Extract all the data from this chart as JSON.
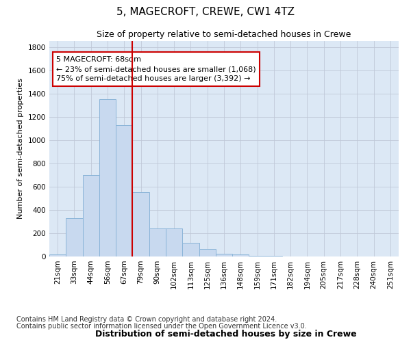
{
  "title": "5, MAGECROFT, CREWE, CW1 4TZ",
  "subtitle": "Size of property relative to semi-detached houses in Crewe",
  "xlabel": "Distribution of semi-detached houses by size in Crewe",
  "ylabel": "Number of semi-detached properties",
  "bar_color": "#c8d9ef",
  "bar_edge_color": "#8ab4d8",
  "grid_color": "#c0c8d8",
  "background_color": "#ffffff",
  "plot_bg_color": "#dce8f5",
  "annotation_box_color": "#ffffff",
  "annotation_box_edge": "#cc0000",
  "red_line_color": "#cc0000",
  "categories": [
    "21sqm",
    "33sqm",
    "44sqm",
    "56sqm",
    "67sqm",
    "79sqm",
    "90sqm",
    "102sqm",
    "113sqm",
    "125sqm",
    "136sqm",
    "148sqm",
    "159sqm",
    "171sqm",
    "182sqm",
    "194sqm",
    "205sqm",
    "217sqm",
    "228sqm",
    "240sqm",
    "251sqm"
  ],
  "values": [
    20,
    330,
    700,
    1350,
    1130,
    550,
    240,
    240,
    120,
    65,
    25,
    20,
    5,
    5,
    2,
    1,
    0,
    0,
    0,
    0,
    0
  ],
  "property_label": "5 MAGECROFT: 68sqm",
  "pct_smaller": "23",
  "num_smaller": "1,068",
  "pct_larger": "75",
  "num_larger": "3,392",
  "red_line_index": 4,
  "ylim": [
    0,
    1850
  ],
  "yticks": [
    0,
    200,
    400,
    600,
    800,
    1000,
    1200,
    1400,
    1600,
    1800
  ],
  "footer1": "Contains HM Land Registry data © Crown copyright and database right 2024.",
  "footer2": "Contains public sector information licensed under the Open Government Licence v3.0.",
  "title_fontsize": 11,
  "subtitle_fontsize": 9,
  "xlabel_fontsize": 9,
  "ylabel_fontsize": 8,
  "tick_fontsize": 7.5,
  "annotation_fontsize": 8,
  "footer_fontsize": 7
}
